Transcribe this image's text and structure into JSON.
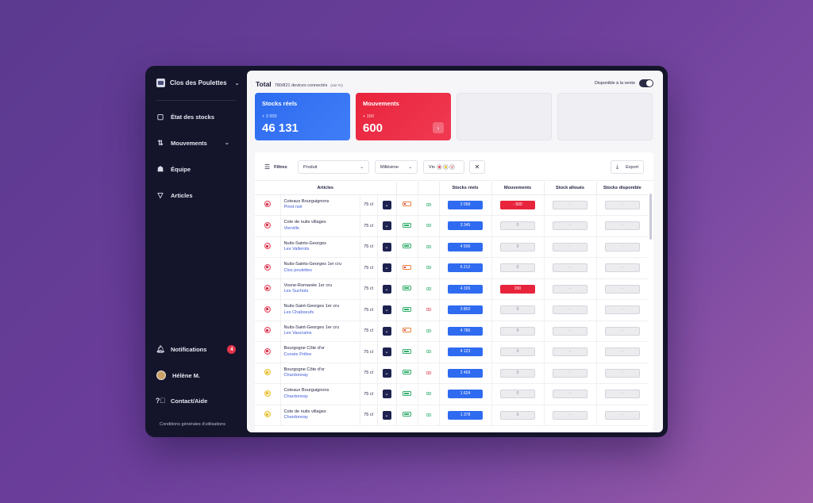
{
  "sidebar": {
    "brand": "Clos des Poulettes",
    "nav": [
      {
        "label": "État des stocks",
        "icon": "clipboard-icon"
      },
      {
        "label": "Mouvements",
        "icon": "arrows-updown-icon"
      },
      {
        "label": "Équipe",
        "icon": "team-icon"
      },
      {
        "label": "Articles",
        "icon": "wine-glass-icon"
      }
    ],
    "notifications": {
      "label": "Notifications",
      "count": "4"
    },
    "user": {
      "label": "Hélène M."
    },
    "contact": {
      "label": "Contact/Aide"
    },
    "cgu": "Conditions générales d'utilisations"
  },
  "header": {
    "title": "Total",
    "devices": "780/821 devices connectés",
    "devices_note": "(voir #1)",
    "availability": "Disponible à la vente"
  },
  "cards": [
    {
      "label": "Stocks réels",
      "delta": "+ 3 000",
      "value": "46 131",
      "color": "#2d6bf0"
    },
    {
      "label": "Mouvements",
      "delta": "+ 150",
      "value": "600",
      "color": "#e8243c"
    }
  ],
  "filters": {
    "label": "Filtres",
    "produit": "Produit",
    "millesime": "Millésime",
    "vin": "Vin",
    "vin_colors": [
      "#e64860",
      "#e8c030",
      "#f0a0a8"
    ],
    "export": "Export"
  },
  "table": {
    "headers": [
      "Articles",
      "Stocks réels",
      "Mouvements",
      "Stock alloués",
      "Stocks disponible"
    ],
    "rows": [
      {
        "type": "red",
        "name": "Coteaux Bourguignons",
        "sub": "Pinot noir",
        "vol": "75 cl",
        "batt": "low",
        "glass": "green",
        "stock": "2 058",
        "mvt": "- 500",
        "mvt_type": "red",
        "alloc": "-",
        "dispo": "-"
      },
      {
        "type": "red",
        "name": "Cote de nuits villages",
        "sub": "Vierville",
        "vol": "75 cl",
        "batt": "ok",
        "glass": "green",
        "stock": "3 345",
        "mvt": "0",
        "mvt_type": "grey",
        "alloc": "-",
        "dispo": "-"
      },
      {
        "type": "red",
        "name": "Nuits-Saints-Georges",
        "sub": "Les Vallerots",
        "vol": "75 cl",
        "batt": "ok",
        "glass": "green",
        "stock": "4 506",
        "mvt": "0",
        "mvt_type": "grey",
        "alloc": "-",
        "dispo": "-"
      },
      {
        "type": "red",
        "name": "Nuits-Saints-Georges 1er cru",
        "sub": "Clos poulettes",
        "vol": "75 cl",
        "batt": "low",
        "glass": "green",
        "stock": "6 212",
        "mvt": "0",
        "mvt_type": "grey",
        "alloc": "-",
        "dispo": "-"
      },
      {
        "type": "red",
        "name": "Vosne-Romanée 1er cru",
        "sub": "Les Suchots",
        "vol": "75 cl",
        "batt": "ok",
        "glass": "green",
        "stock": "4 326",
        "mvt": "200",
        "mvt_type": "red",
        "alloc": "-",
        "dispo": "-"
      },
      {
        "type": "red",
        "name": "Nuits-Saint-Georges 1er cru",
        "sub": "Les Chaboeufs",
        "vol": "75 cl",
        "batt": "ok",
        "glass": "red",
        "stock": "3 802",
        "mvt": "0",
        "mvt_type": "grey",
        "alloc": "-",
        "dispo": "-"
      },
      {
        "type": "red",
        "name": "Nuits-Saint-Georges 1er cru",
        "sub": "Les Vaucrains",
        "vol": "75 cl",
        "batt": "low",
        "glass": "green",
        "stock": "4 786",
        "mvt": "0",
        "mvt_type": "grey",
        "alloc": "-",
        "dispo": "-"
      },
      {
        "type": "red",
        "name": "Bourgogne Côte d'or",
        "sub": "Corvée Prêtre",
        "vol": "75 cl",
        "batt": "ok",
        "glass": "green",
        "stock": "4 123",
        "mvt": "0",
        "mvt_type": "grey",
        "alloc": "-",
        "dispo": "-"
      },
      {
        "type": "white",
        "name": "Bourgogne Côte d'or",
        "sub": "Chardonnay",
        "vol": "75 cl",
        "batt": "ok",
        "glass": "red",
        "stock": "2 469",
        "mvt": "0",
        "mvt_type": "grey",
        "alloc": "-",
        "dispo": "-"
      },
      {
        "type": "white",
        "name": "Coteaux Bourguignons",
        "sub": "Chardonnay",
        "vol": "75 cl",
        "batt": "ok",
        "glass": "green",
        "stock": "1 624",
        "mvt": "0",
        "mvt_type": "grey",
        "alloc": "-",
        "dispo": "-"
      },
      {
        "type": "white",
        "name": "Cote de nuits villages",
        "sub": "Chardonnay",
        "vol": "75 cl",
        "batt": "ok",
        "glass": "green",
        "stock": "1 378",
        "mvt": "0",
        "mvt_type": "grey",
        "alloc": "-",
        "dispo": "-"
      }
    ]
  }
}
